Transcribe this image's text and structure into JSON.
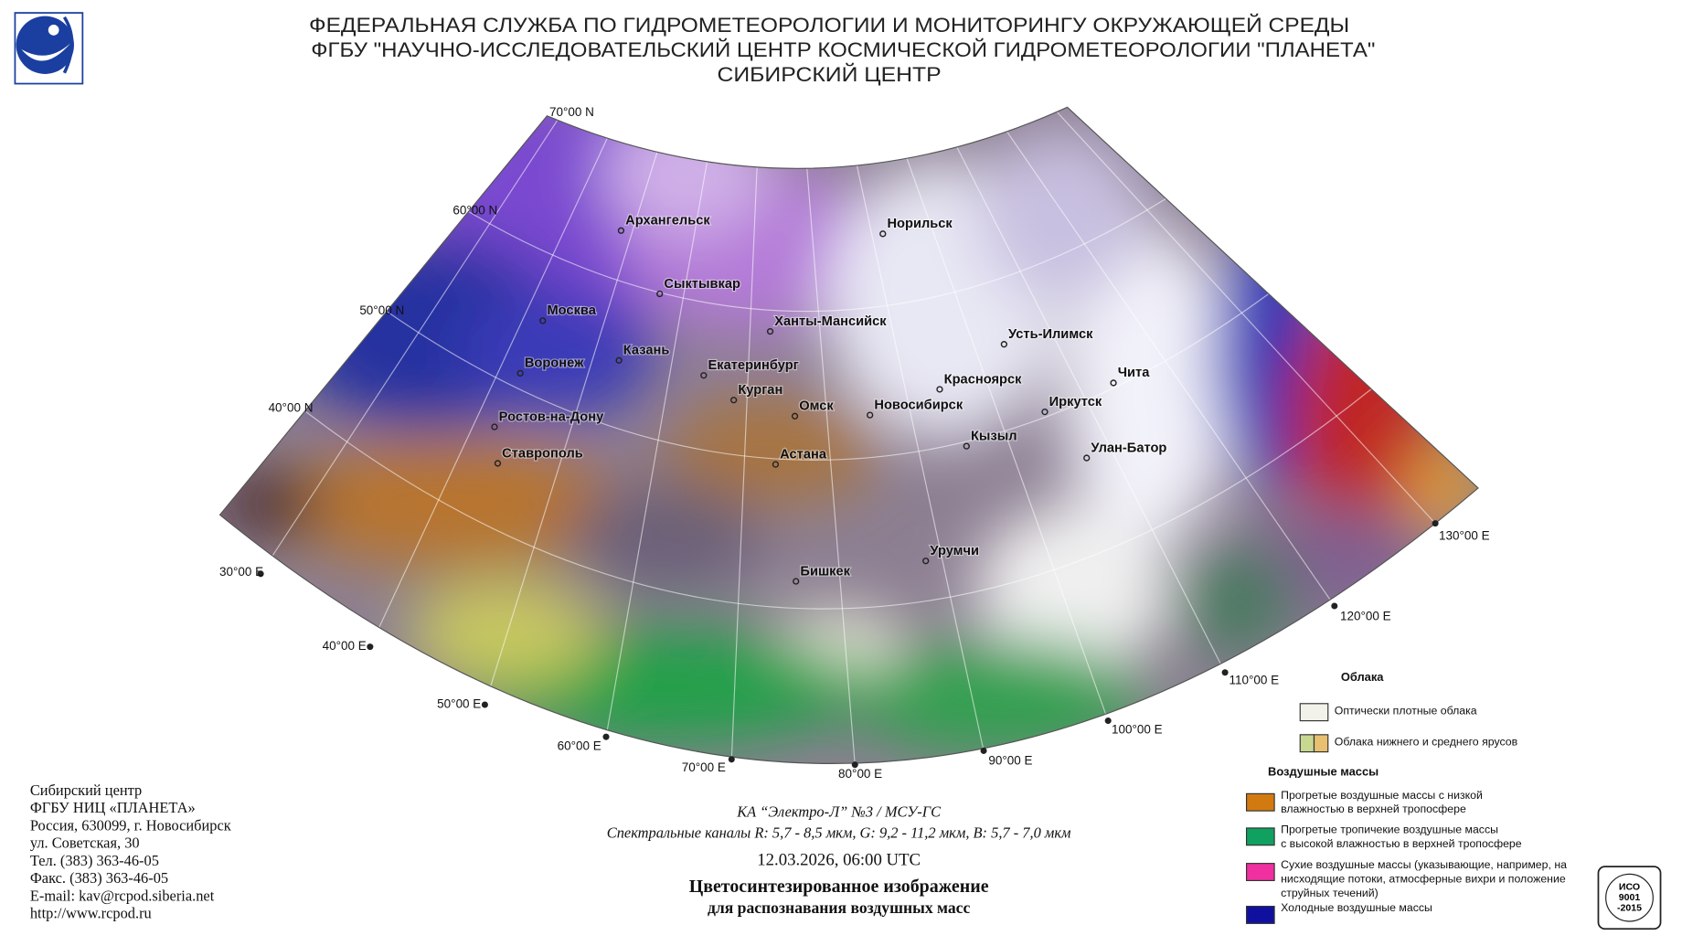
{
  "header": {
    "lines": [
      "ФЕДЕРАЛЬНАЯ СЛУЖБА ПО ГИДРОМЕТЕОРОЛОГИИ И МОНИТОРИНГУ ОКРУЖАЮЩЕЙ СРЕДЫ",
      "ФГБУ \"НАУЧНО-ИССЛЕДОВАТЕЛЬСКИЙ ЦЕНТР КОСМИЧЕСКОЙ ГИДРОМЕТЕОРОЛОГИИ \"ПЛАНЕТА\"",
      "СИБИРСКИЙ ЦЕНТР"
    ]
  },
  "map": {
    "lat_labels": [
      "70°00 N",
      "60°00 N",
      "50°00 N",
      "40°00 N"
    ],
    "lon_labels": [
      "30°00 E",
      "40°00 E",
      "50°00 E",
      "60°00 E",
      "70°00 E",
      "80°00 E",
      "90°00 E",
      "100°00 E",
      "110°00 E",
      "120°00 E",
      "130°00 E"
    ],
    "cities": [
      "Архангельск",
      "Норильск",
      "Сыктывкар",
      "Москва",
      "Ханты-Мансийск",
      "Казань",
      "Воронеж",
      "Усть-Илимск",
      "Екатеринбург",
      "Красноярск",
      "Чита",
      "Курган",
      "Омск",
      "Новосибирск",
      "Иркутск",
      "Ростов-на-Дону",
      "Кызыл",
      "Ставрополь",
      "Астана",
      "Улан-Батор",
      "Урумчи",
      "Бишкек"
    ]
  },
  "legend": {
    "clouds_title": "Облака",
    "clouds": [
      "Оптически плотные облака",
      "Облака нижнего и среднего ярусов"
    ],
    "air_title": "Воздушные массы",
    "air": [
      [
        "Прогретые воздушные массы с низкой",
        "влажностью в верхней тропосфере"
      ],
      [
        "Прогретые тропичекие воздушные массы",
        "с высокой влажностью в верхней тропосфере"
      ],
      [
        "Сухие воздушные массы (указывающие, например, на",
        "нисходящие потоки, атмосферные вихри и положение",
        "струйных течений)"
      ],
      [
        "Холодные воздушные массы"
      ]
    ]
  },
  "footer": {
    "contact": [
      "Сибирский центр",
      "ФГБУ НИЦ «ПЛАНЕТА»",
      "Россия, 630099, г. Новосибирск",
      "ул. Советская, 30",
      "Тел. (383) 363-46-05",
      "Факс. (383) 363-46-05",
      "E-mail: kav@rcpod.siberia.net",
      "http://www.rcpod.ru"
    ],
    "satellite": "КА “Электро-Л” №3 / МСУ-ГС",
    "channels": "Спектральные каналы R: 5,7 - 8,5 мкм, G: 9,2 - 11,2 мкм, B: 5,7 - 7,0 мкм",
    "datetime": "12.03.2026, 06:00 UTC",
    "title": [
      "Цветосинтезированное изображение",
      "для распознавания воздушных масс"
    ]
  },
  "badge": [
    "ИСО",
    "9001",
    "-2015"
  ]
}
